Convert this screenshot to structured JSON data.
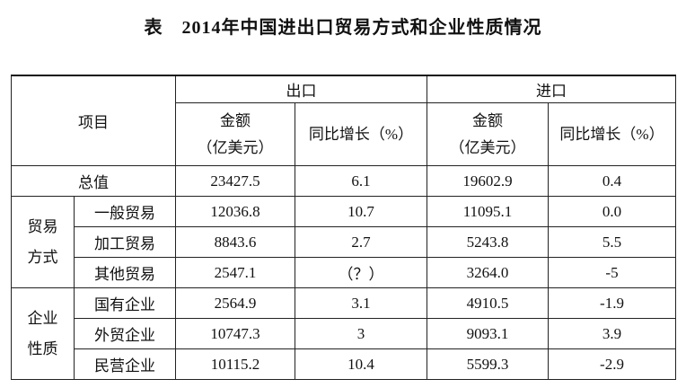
{
  "title": "表　2014年中国进出口贸易方式和企业性质情况",
  "table": {
    "header": {
      "item": "项目",
      "export": "出口",
      "import": "进口",
      "amount": "金额",
      "unit": "（亿美元）",
      "growth": "同比增长（%）"
    },
    "total": {
      "label": "总值",
      "values": [
        "23427.5",
        "6.1",
        "19602.9",
        "0.4"
      ]
    },
    "groups": [
      {
        "label": "贸易方式",
        "rows": [
          {
            "label": "一般贸易",
            "values": [
              "12036.8",
              "10.7",
              "11095.1",
              "0.0"
            ]
          },
          {
            "label": "加工贸易",
            "values": [
              "8843.6",
              "2.7",
              "5243.8",
              "5.5"
            ]
          },
          {
            "label": "其他贸易",
            "values": [
              "2547.1",
              "（？）",
              "3264.0",
              "-5"
            ]
          }
        ]
      },
      {
        "label": "企业性质",
        "rows": [
          {
            "label": "国有企业",
            "values": [
              "2564.9",
              "3.1",
              "4910.5",
              "-1.9"
            ]
          },
          {
            "label": "外贸企业",
            "values": [
              "10747.3",
              "3",
              "9093.1",
              "3.9"
            ]
          },
          {
            "label": "民营企业",
            "values": [
              "10115.2",
              "10.4",
              "5599.3",
              "-2.9"
            ]
          }
        ]
      }
    ]
  }
}
